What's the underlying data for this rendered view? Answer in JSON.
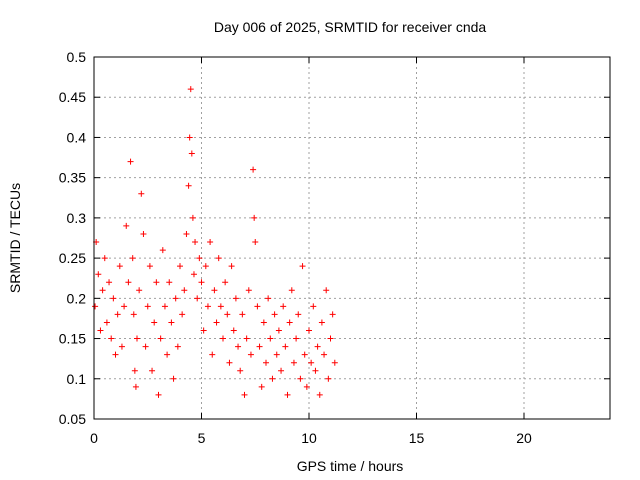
{
  "chart_data": {
    "type": "scatter",
    "title": "Day 006 of 2025, SRMTID for receiver cnda",
    "xlabel": "GPS time / hours",
    "ylabel": "SRMTID / TECUs",
    "xlim": [
      0,
      24
    ],
    "ylim": [
      0.05,
      0.5
    ],
    "xticks": [
      0,
      5,
      10,
      15,
      20
    ],
    "xtick_labels": [
      "0",
      "5",
      "10",
      "15",
      "20"
    ],
    "yticks": [
      0.05,
      0.1,
      0.15,
      0.2,
      0.25,
      0.3,
      0.35,
      0.4,
      0.45,
      0.5
    ],
    "ytick_labels": [
      "0.05",
      "0.1",
      "0.15",
      "0.2",
      "0.25",
      "0.3",
      "0.35",
      "0.4",
      "0.45",
      "0.5"
    ],
    "grid": true,
    "marker": "+",
    "marker_color": "#ff0000",
    "series": [
      {
        "name": "SRMTID",
        "x": [
          0.05,
          0.1,
          0.2,
          0.3,
          0.4,
          0.5,
          0.6,
          0.7,
          0.8,
          0.9,
          1.0,
          1.1,
          1.2,
          1.3,
          1.4,
          1.5,
          1.6,
          1.7,
          1.8,
          1.85,
          1.9,
          1.95,
          2.0,
          2.1,
          2.2,
          2.3,
          2.4,
          2.5,
          2.6,
          2.7,
          2.8,
          2.9,
          3.0,
          3.1,
          3.2,
          3.3,
          3.4,
          3.5,
          3.6,
          3.7,
          3.8,
          3.9,
          4.0,
          4.1,
          4.2,
          4.3,
          4.4,
          4.45,
          4.5,
          4.55,
          4.6,
          4.65,
          4.7,
          4.8,
          4.9,
          5.0,
          5.1,
          5.2,
          5.3,
          5.4,
          5.5,
          5.6,
          5.7,
          5.8,
          5.9,
          6.0,
          6.1,
          6.2,
          6.3,
          6.4,
          6.5,
          6.6,
          6.7,
          6.8,
          6.9,
          7.0,
          7.1,
          7.2,
          7.3,
          7.4,
          7.45,
          7.5,
          7.6,
          7.7,
          7.8,
          7.9,
          8.0,
          8.1,
          8.2,
          8.3,
          8.4,
          8.5,
          8.6,
          8.7,
          8.8,
          8.9,
          9.0,
          9.1,
          9.2,
          9.3,
          9.4,
          9.5,
          9.6,
          9.7,
          9.8,
          9.9,
          10.0,
          10.1,
          10.2,
          10.3,
          10.4,
          10.5,
          10.6,
          10.7,
          10.8,
          10.9,
          11.0,
          11.1,
          11.2
        ],
        "y": [
          0.19,
          0.27,
          0.23,
          0.16,
          0.21,
          0.25,
          0.17,
          0.22,
          0.15,
          0.2,
          0.13,
          0.18,
          0.24,
          0.14,
          0.19,
          0.29,
          0.22,
          0.37,
          0.25,
          0.18,
          0.11,
          0.09,
          0.15,
          0.21,
          0.33,
          0.28,
          0.14,
          0.19,
          0.24,
          0.11,
          0.17,
          0.22,
          0.08,
          0.15,
          0.26,
          0.19,
          0.13,
          0.22,
          0.17,
          0.1,
          0.2,
          0.14,
          0.24,
          0.18,
          0.21,
          0.28,
          0.34,
          0.4,
          0.46,
          0.38,
          0.3,
          0.23,
          0.27,
          0.2,
          0.25,
          0.22,
          0.16,
          0.24,
          0.19,
          0.27,
          0.13,
          0.21,
          0.17,
          0.25,
          0.19,
          0.15,
          0.22,
          0.18,
          0.12,
          0.24,
          0.16,
          0.2,
          0.14,
          0.11,
          0.18,
          0.08,
          0.15,
          0.21,
          0.13,
          0.36,
          0.3,
          0.27,
          0.19,
          0.14,
          0.09,
          0.17,
          0.12,
          0.2,
          0.15,
          0.1,
          0.18,
          0.13,
          0.16,
          0.11,
          0.19,
          0.14,
          0.08,
          0.17,
          0.21,
          0.12,
          0.15,
          0.18,
          0.1,
          0.24,
          0.13,
          0.09,
          0.16,
          0.12,
          0.19,
          0.11,
          0.14,
          0.08,
          0.17,
          0.13,
          0.21,
          0.1,
          0.15,
          0.18,
          0.12
        ]
      }
    ]
  }
}
